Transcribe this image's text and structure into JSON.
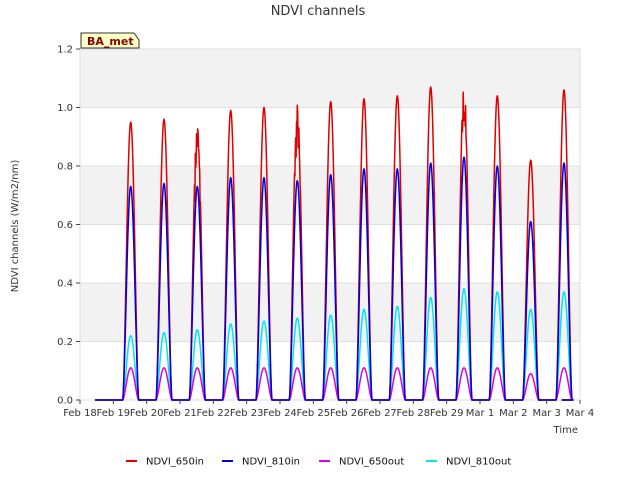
{
  "chart_data": {
    "type": "line",
    "title": "NDVI channels",
    "xlabel": "Time",
    "ylabel": "NDVI channels (W/m2/nm)",
    "badge": "BA_met",
    "ylim": [
      0.0,
      1.2
    ],
    "yticks": [
      "0.0",
      "0.2",
      "0.4",
      "0.6",
      "0.8",
      "1.0",
      "1.2"
    ],
    "ytick_values": [
      0.0,
      0.2,
      0.4,
      0.6,
      0.8,
      1.0,
      1.2
    ],
    "xlim_days": [
      0,
      15
    ],
    "xticks": [
      "Feb 18",
      "Feb 19",
      "Feb 20",
      "Feb 21",
      "Feb 22",
      "Feb 23",
      "Feb 24",
      "Feb 25",
      "Feb 26",
      "Feb 27",
      "Feb 28",
      "Feb 29",
      "Mar 1",
      "Mar 2",
      "Mar 3",
      "Mar 4"
    ],
    "grid": "horizontal bands",
    "legend_position": "bottom",
    "days": [
      "Feb 19",
      "Feb 20",
      "Feb 21",
      "Feb 22",
      "Feb 23",
      "Feb 24",
      "Feb 25",
      "Feb 26",
      "Feb 27",
      "Feb 28",
      "Feb 29",
      "Mar 1",
      "Mar 2",
      "Mar 3"
    ],
    "series": [
      {
        "name": "NDVI_650in",
        "color": "#dd0000",
        "daily_peak": [
          0.95,
          0.96,
          0.95,
          0.99,
          1.0,
          1.0,
          1.02,
          1.03,
          1.04,
          1.07,
          1.08,
          1.04,
          0.82,
          1.06
        ]
      },
      {
        "name": "NDVI_810in",
        "color": "#0000dd",
        "daily_peak": [
          0.73,
          0.74,
          0.73,
          0.76,
          0.76,
          0.75,
          0.77,
          0.79,
          0.79,
          0.81,
          0.83,
          0.8,
          0.61,
          0.81
        ]
      },
      {
        "name": "NDVI_650out",
        "color": "#dd00dd",
        "daily_peak": [
          0.11,
          0.11,
          0.11,
          0.11,
          0.11,
          0.11,
          0.11,
          0.11,
          0.11,
          0.11,
          0.11,
          0.11,
          0.09,
          0.11
        ]
      },
      {
        "name": "NDVI_810out",
        "color": "#00e5ee",
        "daily_peak": [
          0.22,
          0.23,
          0.24,
          0.26,
          0.27,
          0.28,
          0.29,
          0.31,
          0.32,
          0.35,
          0.38,
          0.37,
          0.31,
          0.37
        ]
      }
    ]
  }
}
